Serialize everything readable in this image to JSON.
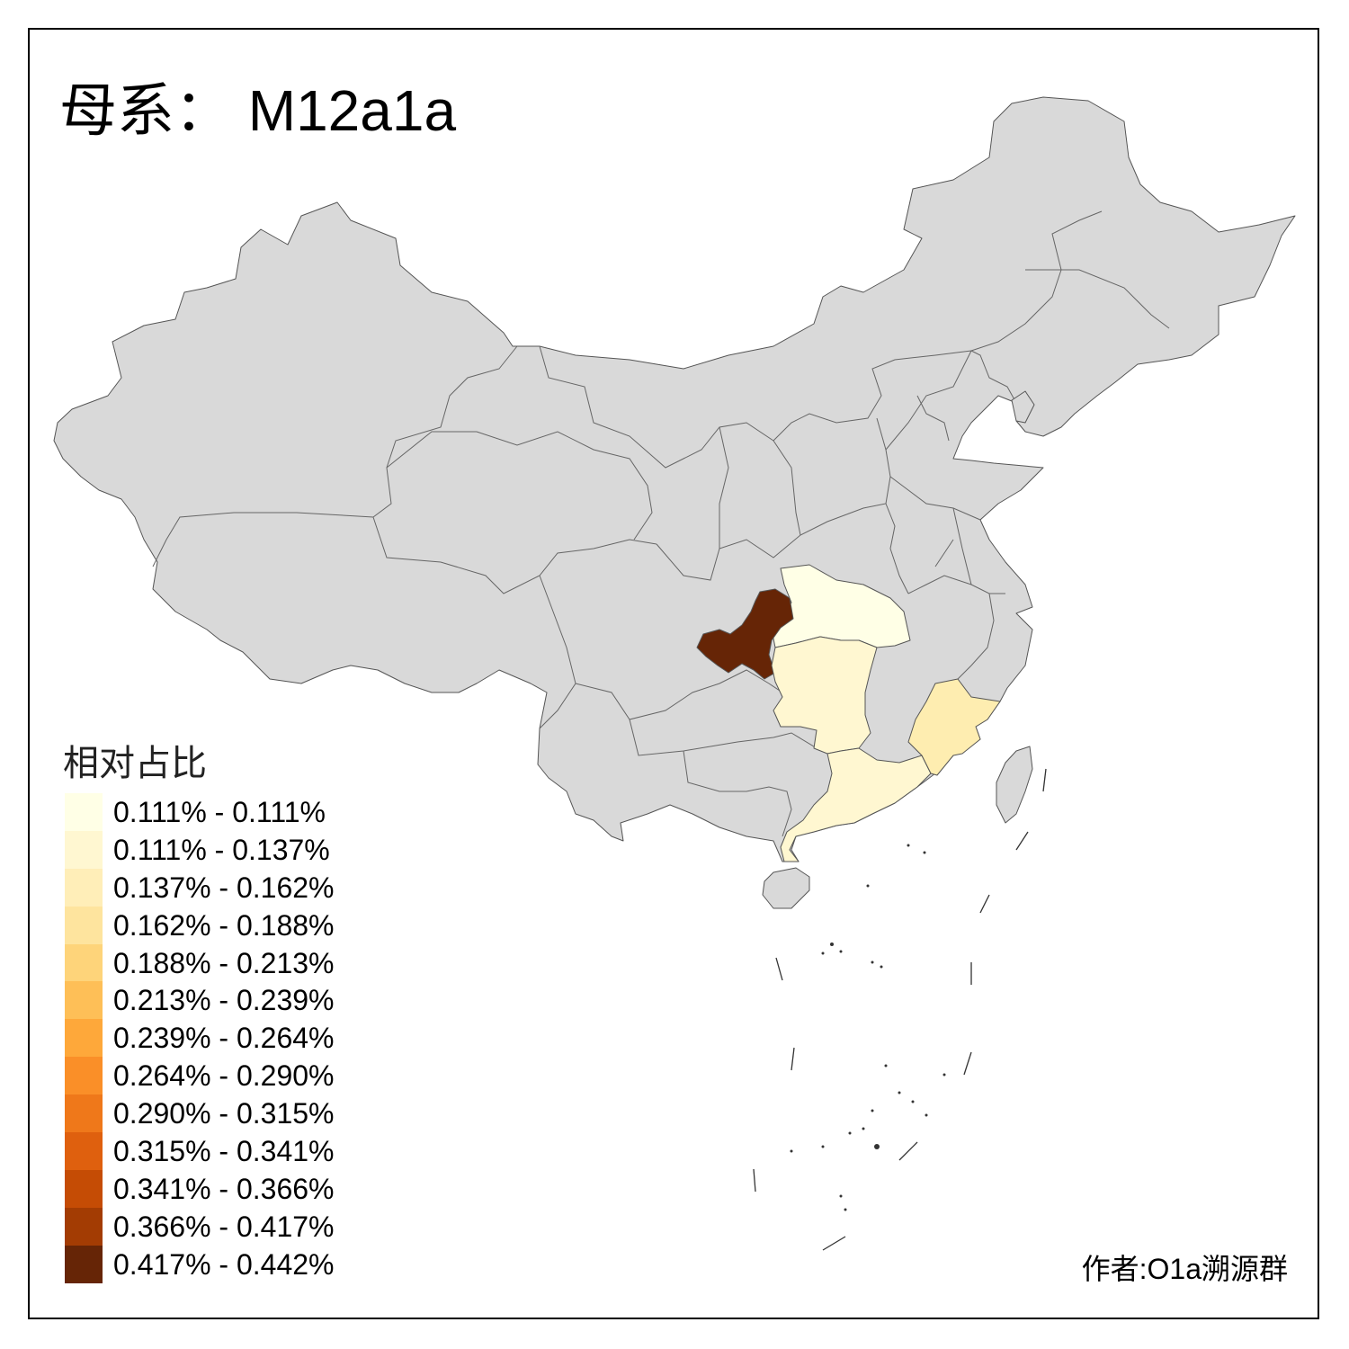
{
  "title": "母系： M12a1a",
  "legend": {
    "title": "相对占比",
    "items": [
      {
        "label": "0.111% - 0.111%",
        "color": "#FFFFE6"
      },
      {
        "label": "0.111% - 0.137%",
        "color": "#FFF7D1"
      },
      {
        "label": "0.137% - 0.162%",
        "color": "#FFEEB8"
      },
      {
        "label": "0.162% - 0.188%",
        "color": "#FEE49E"
      },
      {
        "label": "0.188% - 0.213%",
        "color": "#FED47A"
      },
      {
        "label": "0.213% - 0.239%",
        "color": "#FEBF57"
      },
      {
        "label": "0.239% - 0.264%",
        "color": "#FEA83A"
      },
      {
        "label": "0.264% - 0.290%",
        "color": "#FA8F28"
      },
      {
        "label": "0.290% - 0.315%",
        "color": "#EF781A"
      },
      {
        "label": "0.315% - 0.341%",
        "color": "#DF600E"
      },
      {
        "label": "0.341% - 0.366%",
        "color": "#C54C05"
      },
      {
        "label": "0.366% - 0.417%",
        "color": "#A33C03"
      },
      {
        "label": "0.417% - 0.442%",
        "color": "#662506"
      }
    ]
  },
  "author": "作者:O1a溯源群",
  "map_colors": {
    "no_data": "#D9D9D9",
    "chongqing": "#662506",
    "hubei": "#FFFFE6",
    "hunan": "#FFF7D1",
    "guangdong": "#FFF7D1",
    "fujian": "#FEEDB0"
  }
}
